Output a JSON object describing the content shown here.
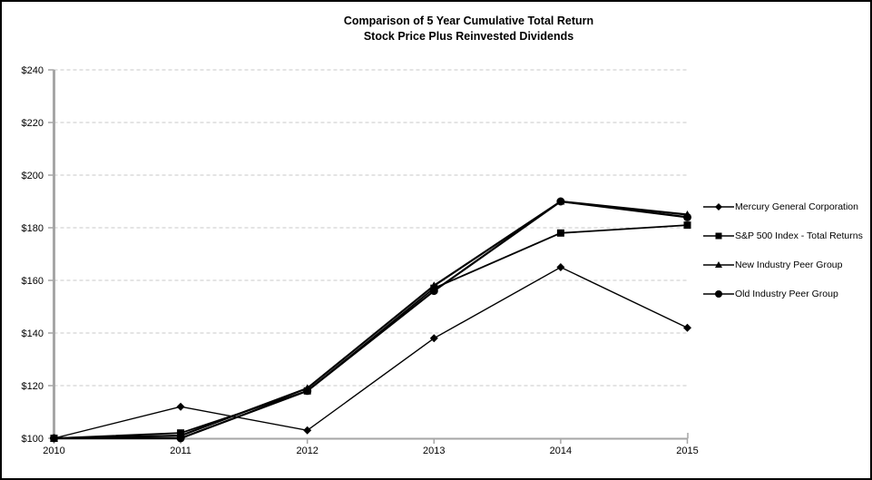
{
  "title": {
    "line1": "Comparison of 5 Year Cumulative Total Return",
    "line2": "Stock Price Plus Reinvested Dividends"
  },
  "chart_data": {
    "type": "line",
    "x": [
      2010,
      2011,
      2012,
      2013,
      2014,
      2015
    ],
    "x_tick_labels": [
      "2010",
      "2011",
      "2012",
      "2013",
      "2014",
      "2015"
    ],
    "y_tick_labels": [
      "$100",
      "$120",
      "$140",
      "$160",
      "$180",
      "$200",
      "$220",
      "$240"
    ],
    "y_ticks": [
      100,
      120,
      140,
      160,
      180,
      200,
      220,
      240
    ],
    "ylim": [
      100,
      240
    ],
    "y_step": 20,
    "grid": "horizontal-dashed",
    "legend_position": "right",
    "series": [
      {
        "name": "Mercury General Corporation",
        "marker": "diamond",
        "values": [
          100,
          112,
          103,
          138,
          165,
          142
        ]
      },
      {
        "name": "S&P 500 Index - Total Returns",
        "marker": "square",
        "values": [
          100,
          102,
          118,
          157,
          178,
          181
        ]
      },
      {
        "name": "New Industry Peer Group",
        "marker": "triangle",
        "values": [
          100,
          101,
          119,
          158,
          190,
          185
        ]
      },
      {
        "name": "Old Industry Peer Group",
        "marker": "circle",
        "values": [
          100,
          100,
          118,
          156,
          190,
          184
        ]
      }
    ],
    "colors": {
      "series": "#000000",
      "grid": "#c8c8c8",
      "axis": "#a6a6a6",
      "text": "#000000",
      "background": "#ffffff",
      "border": "#000000"
    }
  }
}
